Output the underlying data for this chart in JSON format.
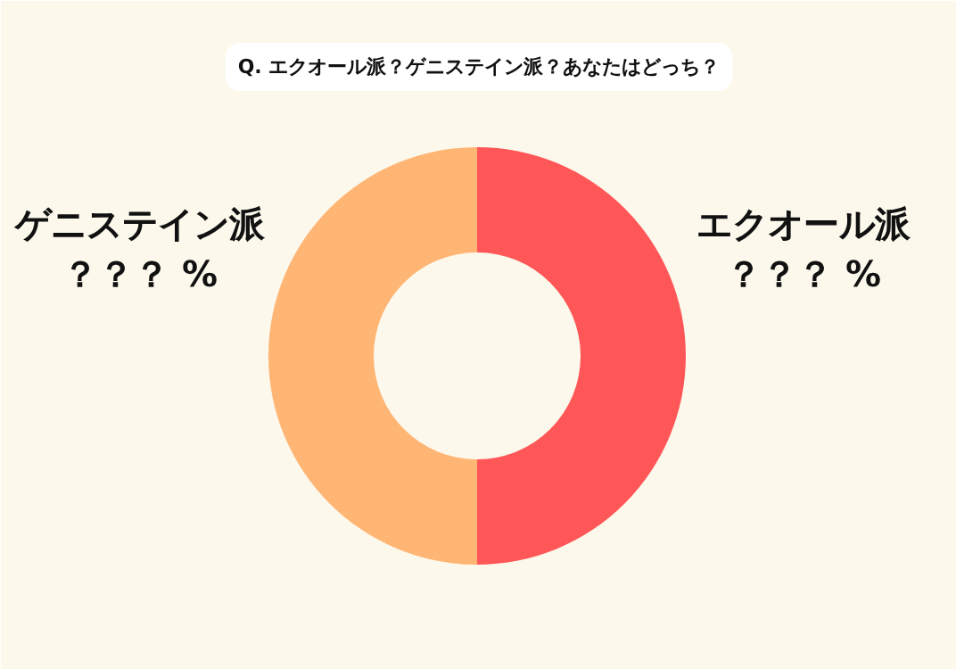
{
  "chart_data": {
    "type": "donut",
    "title": "Q. エクオール派？ゲニステイン派？あなたはどっち？",
    "categories": [
      "エクオール派",
      "ゲニステイン派"
    ],
    "values": [
      50,
      50
    ],
    "colors": [
      "#ff5757",
      "#ffb574"
    ],
    "value_labels": [
      "？？？ %",
      "？？？ %"
    ]
  }
}
